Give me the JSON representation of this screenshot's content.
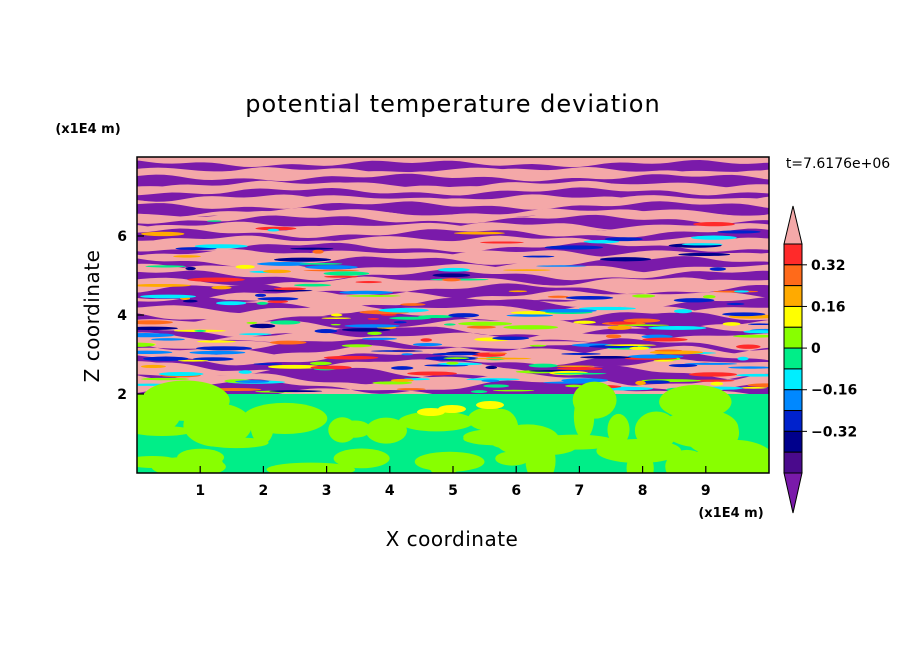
{
  "chart_data": {
    "type": "heatmap",
    "title": "potential temperature deviation",
    "xlabel": "X coordinate",
    "ylabel": "Z coordinate",
    "x_unit": "(x1E4 m)",
    "y_unit": "(x1E4 m)",
    "time_label": "t=7.6176e+06",
    "xlim": [
      0,
      10
    ],
    "ylim": [
      0,
      8
    ],
    "x_ticks": [
      "1",
      "2",
      "3",
      "4",
      "5",
      "6",
      "7",
      "8",
      "9"
    ],
    "y_ticks": [
      "2",
      "4",
      "6"
    ],
    "colorbar": {
      "levels": [
        -0.48,
        -0.4,
        -0.32,
        -0.24,
        -0.16,
        -0.08,
        0,
        0.08,
        0.16,
        0.24,
        0.32,
        0.4,
        0.48
      ],
      "labels": [
        "0.32",
        "0.16",
        "0",
        "−0.16",
        "−0.32"
      ],
      "label_values": [
        0.32,
        0.16,
        0,
        -0.16,
        -0.32
      ],
      "colors_top_to_bottom": [
        "#f4a8a8",
        "#ff2a2a",
        "#ff6a1a",
        "#ffaa00",
        "#ffff00",
        "#88ff00",
        "#00ee88",
        "#00eeff",
        "#0088ff",
        "#0022cc",
        "#00008c",
        "#4a0a8c",
        "#7a1aaa"
      ],
      "extend": "both"
    },
    "regions": [
      {
        "z_range": [
          0,
          2.0
        ],
        "description_values": [
          0.0,
          0.08
        ]
      },
      {
        "z_range": [
          2.0,
          8.0
        ],
        "description_values": [
          -0.48,
          0.48
        ]
      }
    ]
  }
}
